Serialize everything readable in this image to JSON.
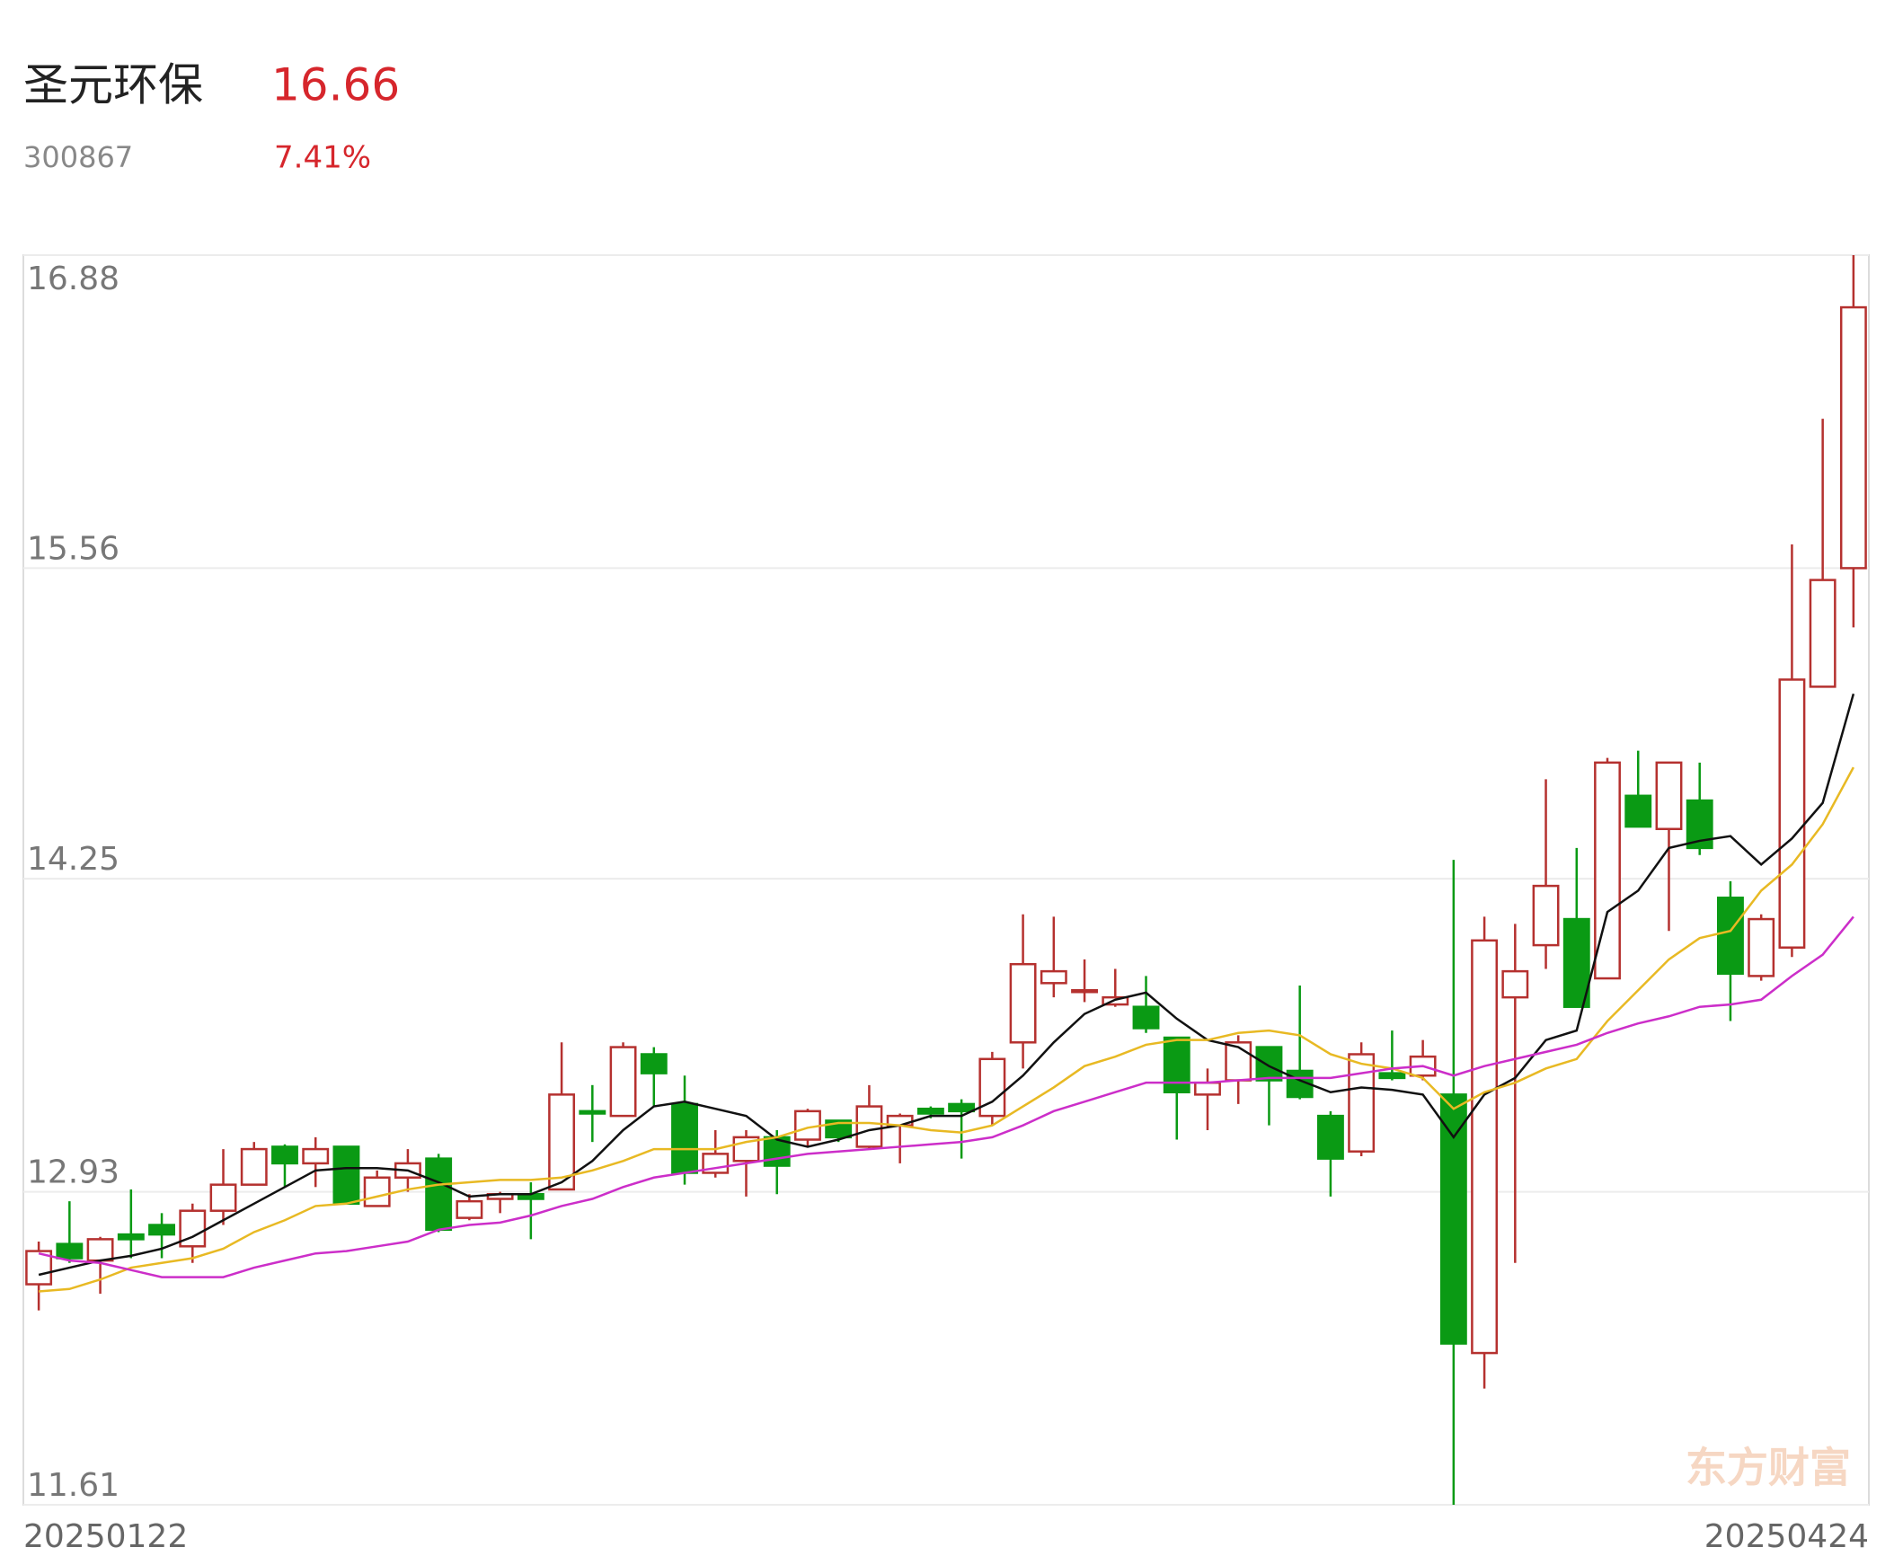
{
  "chart_data": {
    "type": "candlestick",
    "title": "圣元环保",
    "code": "300867",
    "price": "16.66",
    "change": "7.41%",
    "watermark": "东方财富",
    "up_color": "#b5312f",
    "down_color": "#0a9a14",
    "grid": true,
    "ylim": [
      11.61,
      16.88
    ],
    "yticks": [
      11.61,
      12.93,
      14.25,
      15.56,
      16.88
    ],
    "categories": [
      "20250122",
      null,
      null,
      null,
      null,
      null,
      null,
      null,
      null,
      null,
      null,
      null,
      null,
      null,
      null,
      null,
      null,
      null,
      null,
      null,
      null,
      null,
      null,
      null,
      null,
      null,
      null,
      null,
      null,
      null,
      null,
      null,
      null,
      null,
      null,
      null,
      null,
      null,
      null,
      null,
      null,
      null,
      null,
      null,
      null,
      null,
      null,
      null,
      null,
      null,
      null,
      null,
      null,
      null,
      null,
      null,
      null,
      null,
      null,
      "20250424"
    ],
    "open": [
      12.54,
      12.71,
      12.64,
      12.75,
      12.79,
      12.7,
      12.85,
      12.96,
      13.12,
      13.05,
      13.12,
      12.87,
      12.99,
      13.07,
      12.82,
      12.9,
      12.92,
      12.94,
      13.27,
      13.25,
      13.51,
      13.3,
      13.01,
      13.06,
      13.16,
      13.15,
      13.23,
      13.12,
      13.21,
      13.28,
      13.3,
      13.25,
      13.56,
      13.81,
      13.78,
      13.72,
      13.71,
      13.58,
      13.34,
      13.4,
      13.54,
      13.44,
      13.25,
      13.1,
      13.43,
      13.42,
      13.34,
      12.25,
      13.75,
      13.97,
      14.08,
      13.83,
      14.6,
      14.46,
      14.58,
      14.17,
      13.84,
      13.96,
      15.06,
      15.56
    ],
    "high": [
      12.72,
      12.89,
      12.74,
      12.94,
      12.84,
      12.88,
      13.11,
      13.14,
      13.13,
      13.16,
      13.12,
      13.02,
      13.11,
      13.09,
      12.92,
      12.93,
      12.97,
      13.56,
      13.38,
      13.56,
      13.54,
      13.42,
      13.19,
      13.19,
      13.19,
      13.28,
      13.23,
      13.38,
      13.26,
      13.29,
      13.32,
      13.52,
      14.1,
      14.09,
      13.91,
      13.87,
      13.84,
      13.58,
      13.45,
      13.59,
      13.54,
      13.8,
      13.27,
      13.56,
      13.61,
      13.57,
      14.33,
      14.09,
      14.06,
      14.67,
      14.38,
      14.76,
      14.79,
      14.74,
      14.74,
      14.24,
      14.1,
      15.66,
      16.19,
      16.88
    ],
    "low": [
      12.43,
      12.63,
      12.5,
      12.65,
      12.65,
      12.63,
      12.79,
      12.96,
      12.95,
      12.95,
      12.88,
      12.87,
      12.93,
      12.76,
      12.81,
      12.84,
      12.73,
      12.94,
      13.14,
      13.25,
      13.29,
      12.96,
      12.99,
      12.91,
      12.92,
      13.12,
      13.14,
      13.11,
      13.05,
      13.24,
      13.07,
      13.21,
      13.45,
      13.75,
      13.73,
      13.71,
      13.6,
      13.15,
      13.19,
      13.3,
      13.21,
      13.32,
      12.91,
      13.08,
      13.4,
      13.4,
      11.61,
      12.1,
      12.63,
      13.87,
      13.71,
      13.83,
      14.47,
      14.03,
      14.35,
      13.65,
      13.82,
      13.92,
      15.06,
      15.31
    ],
    "close": [
      12.68,
      12.65,
      12.73,
      12.73,
      12.75,
      12.85,
      12.96,
      13.11,
      13.05,
      13.11,
      12.88,
      12.99,
      13.05,
      12.77,
      12.89,
      12.92,
      12.9,
      13.34,
      13.26,
      13.54,
      13.43,
      13.01,
      13.09,
      13.16,
      13.04,
      13.27,
      13.16,
      13.29,
      13.25,
      13.26,
      13.27,
      13.49,
      13.89,
      13.86,
      13.78,
      13.75,
      13.62,
      13.35,
      13.39,
      13.56,
      13.4,
      13.33,
      13.07,
      13.51,
      13.41,
      13.5,
      12.29,
      13.99,
      13.86,
      14.22,
      13.71,
      14.74,
      14.47,
      14.74,
      14.38,
      13.85,
      14.08,
      15.09,
      15.51,
      16.66
    ],
    "lines": [
      {
        "color": "#111111",
        "values": [
          12.58,
          12.61,
          12.64,
          12.66,
          12.69,
          12.74,
          12.81,
          12.88,
          12.95,
          13.02,
          13.03,
          13.03,
          13.02,
          12.97,
          12.91,
          12.92,
          12.92,
          12.97,
          13.06,
          13.19,
          13.29,
          13.31,
          13.28,
          13.25,
          13.15,
          13.12,
          13.15,
          13.19,
          13.21,
          13.25,
          13.25,
          13.31,
          13.42,
          13.56,
          13.68,
          13.74,
          13.77,
          13.66,
          13.57,
          13.54,
          13.46,
          13.4,
          13.35,
          13.37,
          13.36,
          13.34,
          13.16,
          13.34,
          13.41,
          13.57,
          13.61,
          14.11,
          14.2,
          14.38,
          14.41,
          14.43,
          14.31,
          14.42,
          14.57,
          15.03
        ]
      },
      {
        "color": "#e8b923",
        "values": [
          12.51,
          12.52,
          12.56,
          12.61,
          12.63,
          12.65,
          12.69,
          12.76,
          12.81,
          12.87,
          12.88,
          12.91,
          12.94,
          12.96,
          12.97,
          12.98,
          12.98,
          12.99,
          13.02,
          13.06,
          13.11,
          13.11,
          13.11,
          13.14,
          13.16,
          13.2,
          13.22,
          13.22,
          13.21,
          13.19,
          13.18,
          13.21,
          13.29,
          13.37,
          13.46,
          13.5,
          13.55,
          13.57,
          13.57,
          13.6,
          13.61,
          13.59,
          13.51,
          13.47,
          13.45,
          13.41,
          13.28,
          13.35,
          13.39,
          13.45,
          13.49,
          13.65,
          13.78,
          13.91,
          14.0,
          14.03,
          14.2,
          14.31,
          14.48,
          14.72
        ]
      },
      {
        "color": "#cc2ec9",
        "values": [
          12.67,
          12.64,
          12.63,
          12.6,
          12.57,
          12.57,
          12.57,
          12.61,
          12.64,
          12.67,
          12.68,
          12.7,
          12.72,
          12.77,
          12.79,
          12.8,
          12.83,
          12.87,
          12.9,
          12.95,
          12.99,
          13.01,
          13.03,
          13.05,
          13.07,
          13.09,
          13.1,
          13.11,
          13.12,
          13.13,
          13.14,
          13.16,
          13.21,
          13.27,
          13.31,
          13.35,
          13.39,
          13.39,
          13.39,
          13.4,
          13.41,
          13.41,
          13.41,
          13.43,
          13.45,
          13.46,
          13.42,
          13.46,
          13.49,
          13.52,
          13.55,
          13.6,
          13.64,
          13.67,
          13.71,
          13.72,
          13.74,
          13.84,
          13.93,
          14.09
        ]
      }
    ]
  }
}
